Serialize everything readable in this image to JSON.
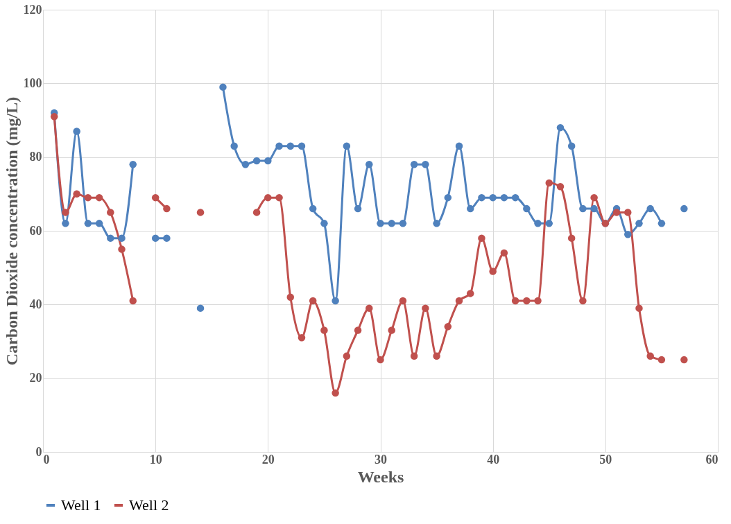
{
  "chart_data": {
    "type": "line",
    "xlabel": "Weeks",
    "ylabel": "Carbon Dioxide concentration (mg/L)",
    "x": [
      1,
      2,
      3,
      4,
      5,
      6,
      7,
      8,
      9,
      10,
      11,
      12,
      13,
      14,
      15,
      16,
      17,
      18,
      19,
      20,
      21,
      22,
      23,
      24,
      25,
      26,
      27,
      28,
      29,
      30,
      31,
      32,
      33,
      34,
      35,
      36,
      37,
      38,
      39,
      40,
      41,
      42,
      43,
      44,
      45,
      46,
      47,
      48,
      49,
      50,
      51,
      52,
      53,
      54,
      55,
      56,
      57
    ],
    "series": [
      {
        "name": "Well 1",
        "color": "#4f81bd",
        "values": [
          92,
          62,
          87,
          62,
          62,
          58,
          58,
          78,
          null,
          58,
          58,
          null,
          null,
          39,
          null,
          99,
          83,
          78,
          79,
          79,
          83,
          83,
          83,
          66,
          62,
          41,
          83,
          66,
          78,
          62,
          62,
          62,
          78,
          78,
          62,
          69,
          83,
          66,
          69,
          69,
          69,
          69,
          66,
          62,
          62,
          88,
          83,
          66,
          66,
          62,
          66,
          59,
          62,
          66,
          62,
          null,
          66
        ]
      },
      {
        "name": "Well 2",
        "color": "#c0504d",
        "values": [
          91,
          65,
          70,
          69,
          69,
          65,
          55,
          41,
          null,
          69,
          66,
          null,
          null,
          65,
          null,
          null,
          null,
          null,
          65,
          69,
          69,
          42,
          31,
          41,
          33,
          16,
          26,
          33,
          39,
          25,
          33,
          41,
          26,
          39,
          26,
          34,
          41,
          43,
          58,
          49,
          54,
          41,
          41,
          41,
          73,
          72,
          58,
          41,
          69,
          62,
          65,
          65,
          39,
          26,
          25,
          null,
          25
        ]
      }
    ],
    "xlim": [
      0,
      60
    ],
    "xticks": [
      0,
      10,
      20,
      30,
      40,
      50,
      60
    ],
    "ylim": [
      0,
      120
    ],
    "yticks": [
      0,
      20,
      40,
      60,
      80,
      100,
      120
    ],
    "grid": true,
    "legend": "bottom",
    "marker": "circle",
    "line_style": "solid"
  }
}
